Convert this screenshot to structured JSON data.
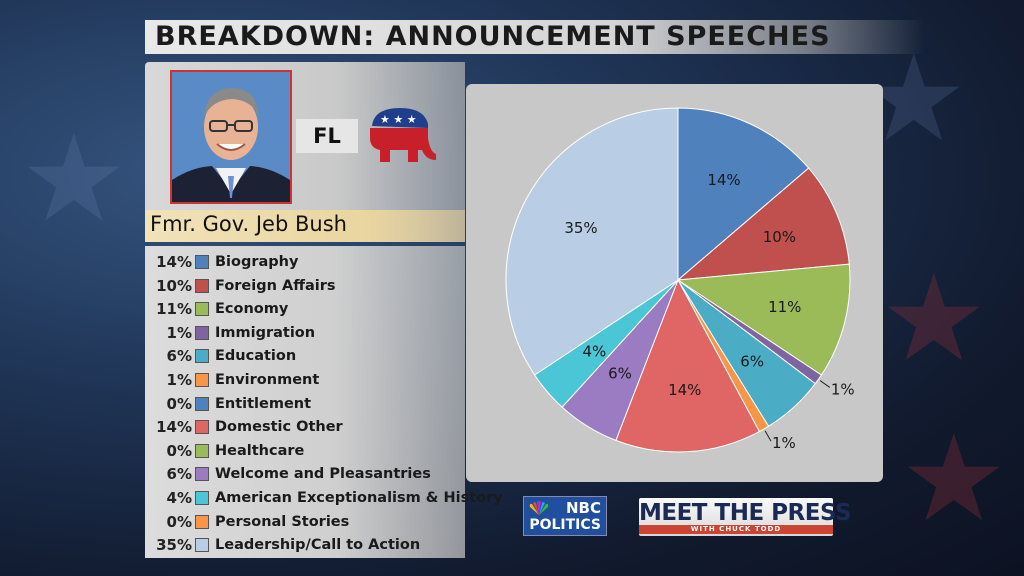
{
  "title": "BREAKDOWN: ANNOUNCEMENT SPEECHES",
  "candidate": {
    "state": "FL",
    "name": "Fmr. Gov. Jeb Bush"
  },
  "chart_data": {
    "type": "pie",
    "categories": [
      "Biography",
      "Foreign Affairs",
      "Economy",
      "Immigration",
      "Education",
      "Environment",
      "Entitlement",
      "Domestic Other",
      "Healthcare",
      "Welcome and Pleasantries",
      "American Exceptionalism & History",
      "Personal Stories",
      "Leadership/Call to Action"
    ],
    "values": [
      14,
      10,
      11,
      1,
      6,
      1,
      0,
      14,
      0,
      6,
      4,
      0,
      35
    ],
    "value_labels": [
      "14%",
      "10%",
      "11%",
      "1%",
      "6%",
      "1%",
      "0%",
      "14%",
      "0%",
      "6%",
      "4%",
      "0%",
      "35%"
    ],
    "colors": [
      "#4f81bd",
      "#c0504d",
      "#9bbb59",
      "#8064a2",
      "#4bacc6",
      "#f79646",
      "#4f81bd",
      "#e06666",
      "#9bbb59",
      "#9b7bc1",
      "#4bc6d6",
      "#f79646",
      "#b9cde5"
    ],
    "legend_placement": "left"
  },
  "logos": {
    "nbc_line1": "NBC",
    "nbc_line2": "POLITICS",
    "mtp_main": "MEET THE PRESS",
    "mtp_sub": "WITH CHUCK TODD"
  }
}
